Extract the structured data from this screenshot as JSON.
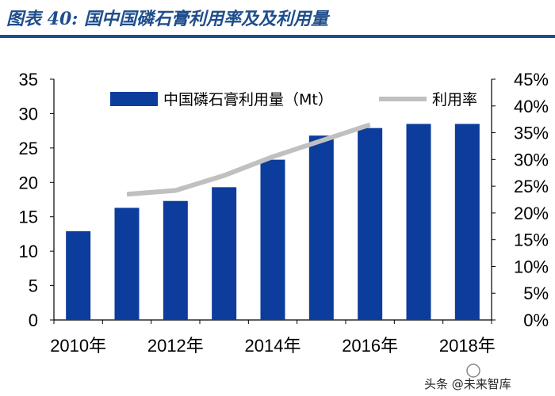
{
  "figure_title": "图表 40:  国中国磷石膏利用率及及利用量",
  "watermark": "头条 @未来智库",
  "colors": {
    "bar": "#0c3c9c",
    "line": "#c0c0c0",
    "title": "#1f4e8c"
  },
  "chart_data": {
    "type": "bar+line",
    "categories": [
      "2010年",
      "2011年",
      "2012年",
      "2013年",
      "2014年",
      "2015年",
      "2016年",
      "2017年",
      "2018年"
    ],
    "x_tick_labels": [
      "2010年",
      "",
      "2012年",
      "",
      "2014年",
      "",
      "2016年",
      "",
      "2018年"
    ],
    "series": [
      {
        "name": "中国磷石膏利用量（Mt）",
        "type": "bar",
        "axis": "left",
        "values": [
          12.9,
          16.3,
          17.3,
          19.3,
          23.3,
          26.8,
          27.9,
          28.5,
          28.5
        ]
      },
      {
        "name": "利用率",
        "type": "line",
        "axis": "right",
        "values": [
          null,
          23.5,
          24.2,
          27.0,
          30.5,
          33.5,
          36.5,
          null,
          null
        ]
      }
    ],
    "y_left": {
      "min": 0,
      "max": 35,
      "ticks": [
        "0",
        "5",
        "10",
        "15",
        "20",
        "25",
        "30",
        "35"
      ]
    },
    "y_right": {
      "min": 0,
      "max": 45,
      "ticks": [
        "0%",
        "5%",
        "10%",
        "15%",
        "20%",
        "25%",
        "30%",
        "35%",
        "40%",
        "45%"
      ]
    },
    "legend_placement": "top",
    "grid": false
  }
}
